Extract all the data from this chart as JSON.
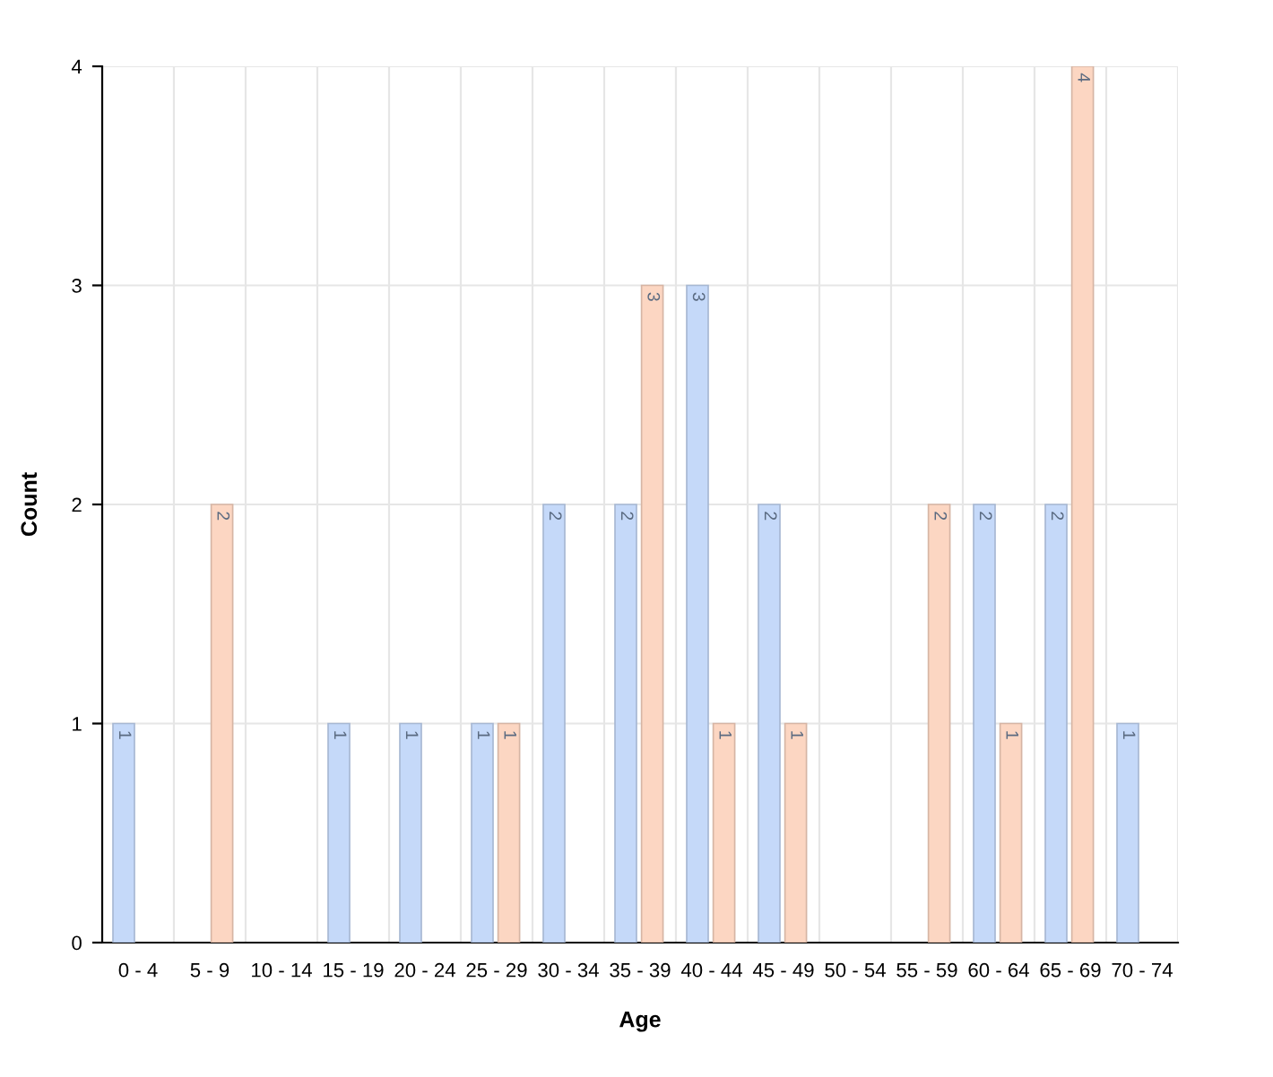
{
  "chart_data": {
    "type": "bar",
    "xlabel": "Age",
    "ylabel": "Count",
    "categories": [
      "0 - 4",
      "5 - 9",
      "10 - 14",
      "15 - 19",
      "20 - 24",
      "25 - 29",
      "30 - 34",
      "35 - 39",
      "40 - 44",
      "45 - 49",
      "50 - 54",
      "55 - 59",
      "60 - 64",
      "65 - 69",
      "70 - 74"
    ],
    "series": [
      {
        "color": "#c5d9f9",
        "values": [
          1,
          null,
          null,
          1,
          1,
          1,
          2,
          2,
          3,
          2,
          null,
          null,
          2,
          2,
          1
        ]
      },
      {
        "color": "#fcd6c2",
        "values": [
          null,
          2,
          null,
          null,
          null,
          1,
          null,
          3,
          1,
          1,
          null,
          2,
          1,
          4,
          null
        ]
      }
    ],
    "ylim": [
      0,
      4
    ],
    "yticks": [
      0,
      1,
      2,
      3,
      4
    ],
    "grid": true,
    "data_labels": true
  }
}
